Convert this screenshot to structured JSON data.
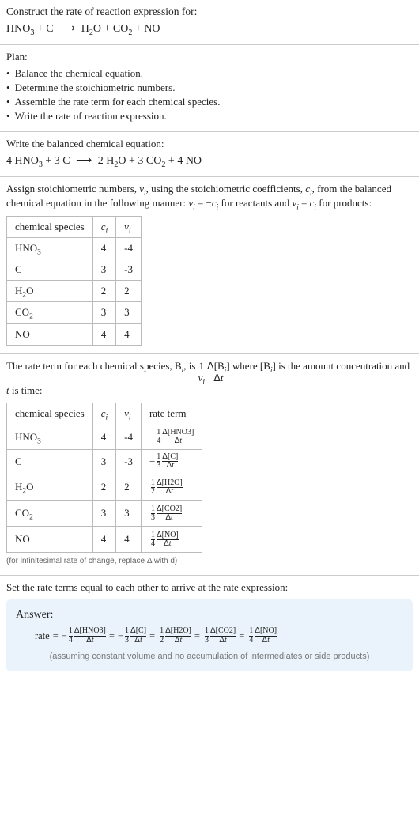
{
  "prompt": {
    "line1": "Construct the rate of reaction expression for:",
    "equation_plain": "HNO3 + C ⟶ H2O + CO2 + NO"
  },
  "plan": {
    "title": "Plan:",
    "items": [
      "Balance the chemical equation.",
      "Determine the stoichiometric numbers.",
      "Assemble the rate term for each chemical species.",
      "Write the rate of reaction expression."
    ]
  },
  "balanced": {
    "intro": "Write the balanced chemical equation:",
    "coeffs": {
      "HNO3": "4",
      "C": "3",
      "H2O": "2",
      "CO2": "3",
      "NO": "4"
    }
  },
  "stoich": {
    "intro_a": "Assign stoichiometric numbers, ",
    "intro_b": ", using the stoichiometric coefficients, ",
    "intro_c": ", from the balanced chemical equation in the following manner: ",
    "intro_d": " for reactants and ",
    "intro_e": " for products:",
    "headers": [
      "chemical species",
      "c_i",
      "ν_i"
    ],
    "rows": [
      {
        "sp": "HNO3",
        "c": "4",
        "v": "-4"
      },
      {
        "sp": "C",
        "c": "3",
        "v": "-3"
      },
      {
        "sp": "H2O",
        "c": "2",
        "v": "2"
      },
      {
        "sp": "CO2",
        "c": "3",
        "v": "3"
      },
      {
        "sp": "NO",
        "c": "4",
        "v": "4"
      }
    ]
  },
  "rateterm": {
    "intro_a": "The rate term for each chemical species, B",
    "intro_b": ", is ",
    "intro_c": " where [B",
    "intro_d": "] is the amount concentration and ",
    "intro_e": " is time:",
    "headers": [
      "chemical species",
      "c_i",
      "ν_i",
      "rate term"
    ],
    "rows": [
      {
        "sp": "HNO3",
        "c": "4",
        "v": "-4",
        "sign": "−",
        "coef_num": "1",
        "coef_den": "4",
        "conc": "[HNO3]"
      },
      {
        "sp": "C",
        "c": "3",
        "v": "-3",
        "sign": "−",
        "coef_num": "1",
        "coef_den": "3",
        "conc": "[C]"
      },
      {
        "sp": "H2O",
        "c": "2",
        "v": "2",
        "sign": "",
        "coef_num": "1",
        "coef_den": "2",
        "conc": "[H2O]"
      },
      {
        "sp": "CO2",
        "c": "3",
        "v": "3",
        "sign": "",
        "coef_num": "1",
        "coef_den": "3",
        "conc": "[CO2]"
      },
      {
        "sp": "NO",
        "c": "4",
        "v": "4",
        "sign": "",
        "coef_num": "1",
        "coef_den": "4",
        "conc": "[NO]"
      }
    ],
    "footnote": "(for infinitesimal rate of change, replace Δ with d)"
  },
  "final": {
    "intro": "Set the rate terms equal to each other to arrive at the rate expression:",
    "answer_label": "Answer:",
    "rate_word": "rate",
    "terms": [
      {
        "sign": "−",
        "coef_num": "1",
        "coef_den": "4",
        "conc": "[HNO3]"
      },
      {
        "sign": "−",
        "coef_num": "1",
        "coef_den": "3",
        "conc": "[C]"
      },
      {
        "sign": "",
        "coef_num": "1",
        "coef_den": "2",
        "conc": "[H2O]"
      },
      {
        "sign": "",
        "coef_num": "1",
        "coef_den": "3",
        "conc": "[CO2]"
      },
      {
        "sign": "",
        "coef_num": "1",
        "coef_den": "4",
        "conc": "[NO]"
      }
    ],
    "note": "(assuming constant volume and no accumulation of intermediates or side products)"
  },
  "symbols": {
    "nu": "ν",
    "delta": "Δ",
    "t": "t",
    "i": "i",
    "c": "c",
    "d": "d",
    "arrow": "⟶",
    "eq": "=",
    "minus": "−"
  },
  "colors": {
    "border": "#cccccc",
    "table_border": "#bbbbbb",
    "text": "#222222",
    "note": "#777777",
    "answer_bg": "#eaf3fb"
  }
}
